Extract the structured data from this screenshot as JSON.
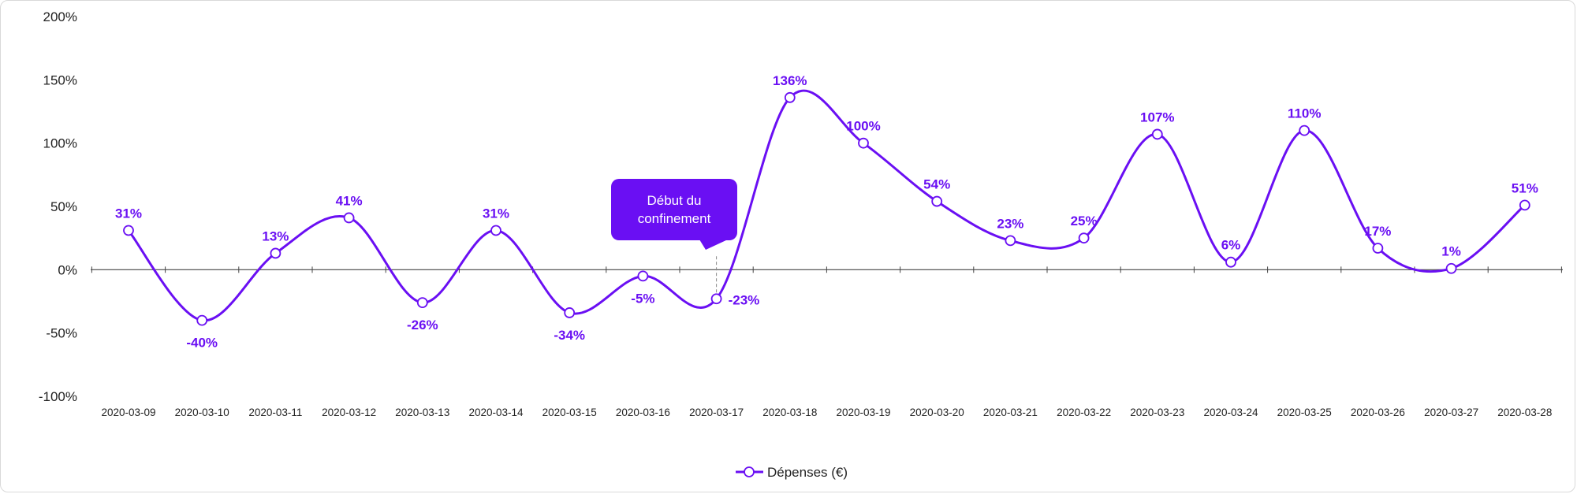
{
  "chart_data": {
    "type": "line",
    "categories": [
      "2020-03-09",
      "2020-03-10",
      "2020-03-11",
      "2020-03-12",
      "2020-03-13",
      "2020-03-14",
      "2020-03-15",
      "2020-03-16",
      "2020-03-17",
      "2020-03-18",
      "2020-03-19",
      "2020-03-20",
      "2020-03-21",
      "2020-03-22",
      "2020-03-23",
      "2020-03-24",
      "2020-03-25",
      "2020-03-26",
      "2020-03-27",
      "2020-03-28"
    ],
    "series": [
      {
        "name": "Dépenses (€)",
        "values": [
          31,
          -40,
          13,
          41,
          -26,
          31,
          -34,
          -5,
          -23,
          136,
          100,
          54,
          23,
          25,
          107,
          6,
          110,
          17,
          1,
          51
        ],
        "labels": [
          "31%",
          "-40%",
          "13%",
          "41%",
          "-26%",
          "31%",
          "-34%",
          "-5%",
          "-23%",
          "136%",
          "100%",
          "54%",
          "23%",
          "25%",
          "107%",
          "6%",
          "110%",
          "17%",
          "1%",
          "51%"
        ],
        "color": "#6a0ff3"
      }
    ],
    "ylim": [
      -100,
      200
    ],
    "yticks": [
      -100,
      -50,
      0,
      50,
      100,
      150,
      200
    ],
    "ytick_labels": [
      "-100%",
      "-50%",
      "0%",
      "50%",
      "100%",
      "150%",
      "200%"
    ],
    "title": "",
    "xlabel": "",
    "ylabel": "",
    "grid": false,
    "legend_position": "bottom-center",
    "annotation": {
      "category": "2020-03-17",
      "lines": [
        "Début du",
        "confinement"
      ],
      "color": "#6a0ff3"
    }
  }
}
